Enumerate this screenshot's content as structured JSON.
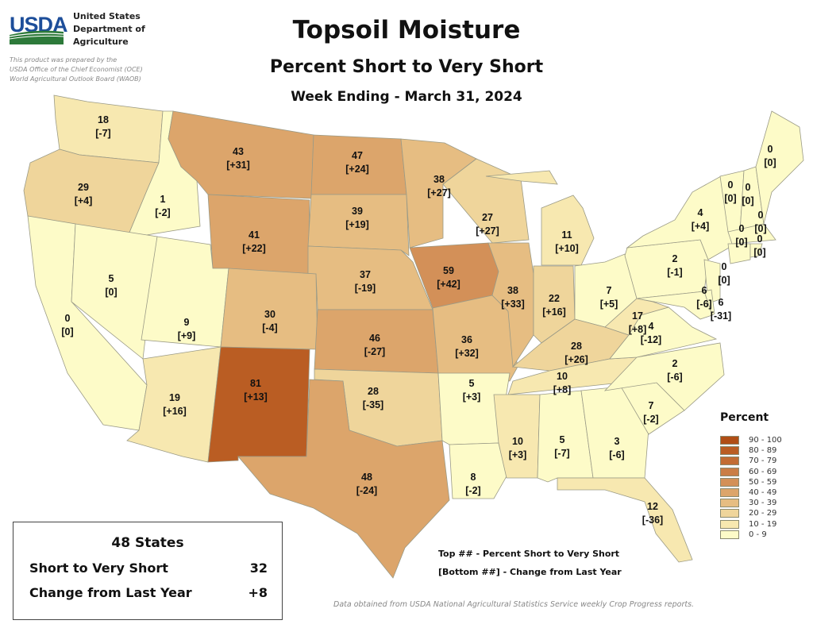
{
  "header": {
    "title": "Topsoil Moisture",
    "subtitle": "Percent Short to Very Short",
    "week": "Week Ending - March 31, 2024",
    "logo_text": "USDA",
    "agency_lines": [
      "United States",
      "Department of",
      "Agriculture"
    ],
    "prepared_lines": [
      "This product was prepared by the",
      "USDA Office of the Chief Economist (OCE)",
      "World Agricultural Outlook Board (WAOB)"
    ]
  },
  "states": [
    {
      "abbr": "WA",
      "value": 18,
      "change": "[-7]"
    },
    {
      "abbr": "OR",
      "value": 29,
      "change": "[+4]"
    },
    {
      "abbr": "ID",
      "value": 1,
      "change": "[-2]"
    },
    {
      "abbr": "MT",
      "value": 43,
      "change": "[+31]"
    },
    {
      "abbr": "WY",
      "value": 41,
      "change": "[+22]"
    },
    {
      "abbr": "ND",
      "value": 47,
      "change": "[+24]"
    },
    {
      "abbr": "SD",
      "value": 39,
      "change": "[+19]"
    },
    {
      "abbr": "NE",
      "value": 37,
      "change": "[-19]"
    },
    {
      "abbr": "CA",
      "value": 0,
      "change": "[0]"
    },
    {
      "abbr": "NV",
      "value": 5,
      "change": "[0]"
    },
    {
      "abbr": "UT",
      "value": 9,
      "change": "[+9]"
    },
    {
      "abbr": "CO",
      "value": 30,
      "change": "[-4]"
    },
    {
      "abbr": "AZ",
      "value": 19,
      "change": "[+16]"
    },
    {
      "abbr": "NM",
      "value": 81,
      "change": "[+13]"
    },
    {
      "abbr": "KS",
      "value": 46,
      "change": "[-27]"
    },
    {
      "abbr": "OK",
      "value": 28,
      "change": "[-35]"
    },
    {
      "abbr": "TX",
      "value": 48,
      "change": "[-24]"
    },
    {
      "abbr": "MN",
      "value": 38,
      "change": "[+27]"
    },
    {
      "abbr": "IA",
      "value": 59,
      "change": "[+42]"
    },
    {
      "abbr": "MO",
      "value": 36,
      "change": "[+32]"
    },
    {
      "abbr": "AR",
      "value": 5,
      "change": "[+3]"
    },
    {
      "abbr": "LA",
      "value": 8,
      "change": "[-2]"
    },
    {
      "abbr": "WI",
      "value": 27,
      "change": "[+27]"
    },
    {
      "abbr": "IL",
      "value": 38,
      "change": "[+33]"
    },
    {
      "abbr": "MI",
      "value": 11,
      "change": "[+10]"
    },
    {
      "abbr": "IN",
      "value": 22,
      "change": "[+16]"
    },
    {
      "abbr": "OH",
      "value": 7,
      "change": "[+5]"
    },
    {
      "abbr": "KY",
      "value": 28,
      "change": "[+26]"
    },
    {
      "abbr": "TN",
      "value": 10,
      "change": "[+8]"
    },
    {
      "abbr": "MS",
      "value": 10,
      "change": "[+3]"
    },
    {
      "abbr": "AL",
      "value": 5,
      "change": "[-7]"
    },
    {
      "abbr": "GA",
      "value": 3,
      "change": "[-6]"
    },
    {
      "abbr": "FL",
      "value": 12,
      "change": "[-36]"
    },
    {
      "abbr": "SC",
      "value": 7,
      "change": "[-2]"
    },
    {
      "abbr": "NC",
      "value": 2,
      "change": "[-6]"
    },
    {
      "abbr": "VA",
      "value": 4,
      "change": "[-12]"
    },
    {
      "abbr": "WV",
      "value": 17,
      "change": "[+8]"
    },
    {
      "abbr": "PA",
      "value": 2,
      "change": "[-1]"
    },
    {
      "abbr": "NY",
      "value": 4,
      "change": "[+4]"
    },
    {
      "abbr": "NJ",
      "value": 0,
      "change": "[0]"
    },
    {
      "abbr": "MD",
      "value": 6,
      "change": "[-6]"
    },
    {
      "abbr": "DE",
      "value": 6,
      "change": "[-31]"
    },
    {
      "abbr": "VT",
      "value": 0,
      "change": "[0]"
    },
    {
      "abbr": "NH",
      "value": 0,
      "change": "[0]"
    },
    {
      "abbr": "ME",
      "value": 0,
      "change": "[0]"
    },
    {
      "abbr": "MA",
      "value": 0,
      "change": "[0]"
    },
    {
      "abbr": "CT",
      "value": 0,
      "change": "[0]"
    },
    {
      "abbr": "RI",
      "value": 0,
      "change": "[0]"
    }
  ],
  "legend": {
    "title": "Percent",
    "bins": [
      {
        "label": "90 - 100",
        "color": "#b04e16"
      },
      {
        "label": "80 - 89",
        "color": "#ba5d23"
      },
      {
        "label": "70 - 79",
        "color": "#c26c33"
      },
      {
        "label": "60 - 69",
        "color": "#ca7d45"
      },
      {
        "label": "50 - 59",
        "color": "#d39058"
      },
      {
        "label": "40 - 49",
        "color": "#dca56b"
      },
      {
        "label": "30 - 39",
        "color": "#e6bd82"
      },
      {
        "label": "20 - 29",
        "color": "#efd59b"
      },
      {
        "label": "10 - 19",
        "color": "#f7e8b0"
      },
      {
        "label": "0 - 9",
        "color": "#fdfbc8"
      }
    ]
  },
  "summary": {
    "heading": "48 States",
    "row1_label": "Short to Very Short",
    "row1_value": "32",
    "row2_label": "Change from Last Year",
    "row2_value": "+8"
  },
  "key": {
    "top": "Top ## - Percent Short to Very Short",
    "bottom": "[Bottom ##] - Change from Last Year"
  },
  "source": "Data obtained from USDA National Agricultural Statistics Service weekly Crop Progress reports."
}
